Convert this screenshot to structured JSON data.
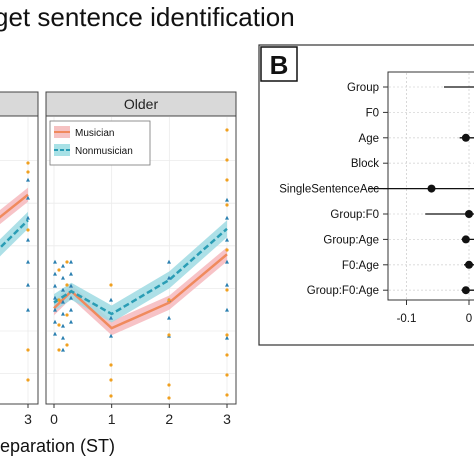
{
  "figure": {
    "title": "get sentence identification"
  },
  "chart_data": [
    {
      "type": "line",
      "panel": "A (cropped)",
      "xlabel": "eparation (ST)",
      "x_ticks": [
        "3"
      ],
      "facets": [
        {
          "name": "",
          "series": [
            {
              "name": "Musician",
              "color": "#f08a5d",
              "x": [
                2.2,
                3
              ],
              "y": [
                0.6,
                0.73
              ]
            },
            {
              "name": "Nonmusician",
              "color": "#2a9db5",
              "x": [
                2.2,
                3
              ],
              "y": [
                0.48,
                0.64
              ]
            }
          ]
        },
        {
          "name": "Older",
          "x_ticks": [
            "0",
            "1",
            "2",
            "3"
          ],
          "series": [
            {
              "name": "Musician",
              "color": "#f08a5d",
              "x": [
                0,
                0.3,
                1,
                2,
                3
              ],
              "y": [
                0.33,
                0.39,
                0.26,
                0.35,
                0.52
              ]
            },
            {
              "name": "Nonmusician",
              "color": "#2a9db5",
              "x": [
                0,
                0.3,
                1,
                2,
                3
              ],
              "y": [
                0.35,
                0.39,
                0.31,
                0.43,
                0.61
              ]
            }
          ]
        }
      ],
      "legend": {
        "position": "top-left",
        "entries": [
          "Musician",
          "Nonmusician"
        ]
      },
      "grid": true
    },
    {
      "type": "scatter",
      "panel": "B",
      "panel_letter": "B",
      "categories": [
        "Group",
        "F0",
        "Age",
        "Block",
        "SingleSentenceAcc",
        "Group:F0",
        "Group:Age",
        "F0:Age",
        "Group:F0:Age"
      ],
      "estimates": [
        null,
        null,
        -0.005,
        null,
        -0.06,
        0.0,
        -0.005,
        0.0,
        -0.005
      ],
      "ci_lower": [
        -0.04,
        null,
        -0.015,
        null,
        -0.16,
        -0.07,
        -0.012,
        -0.008,
        -0.012
      ],
      "x_ticks": [
        "-0.1",
        "0"
      ],
      "xlim": [
        -0.15,
        0.01
      ],
      "grid": true
    }
  ]
}
